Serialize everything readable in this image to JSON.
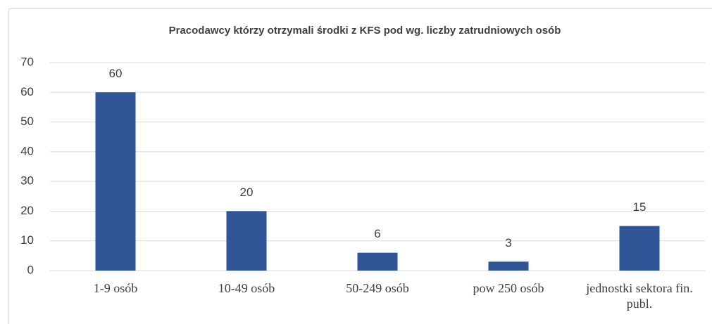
{
  "chart_data": {
    "type": "bar",
    "title": "Pracodawcy którzy otrzymali środki z KFS pod  wg. liczby zatrudniowych osób",
    "categories": [
      "1-9 osób",
      "10-49 osób",
      "50-249 osób",
      "pow 250 osób",
      "jednostki sektora fin. publ."
    ],
    "values": [
      60,
      20,
      6,
      3,
      15
    ],
    "color": "#2f5597",
    "ylim": [
      0,
      70
    ],
    "yticks": [
      0,
      10,
      20,
      30,
      40,
      50,
      60,
      70
    ],
    "grid": true
  }
}
